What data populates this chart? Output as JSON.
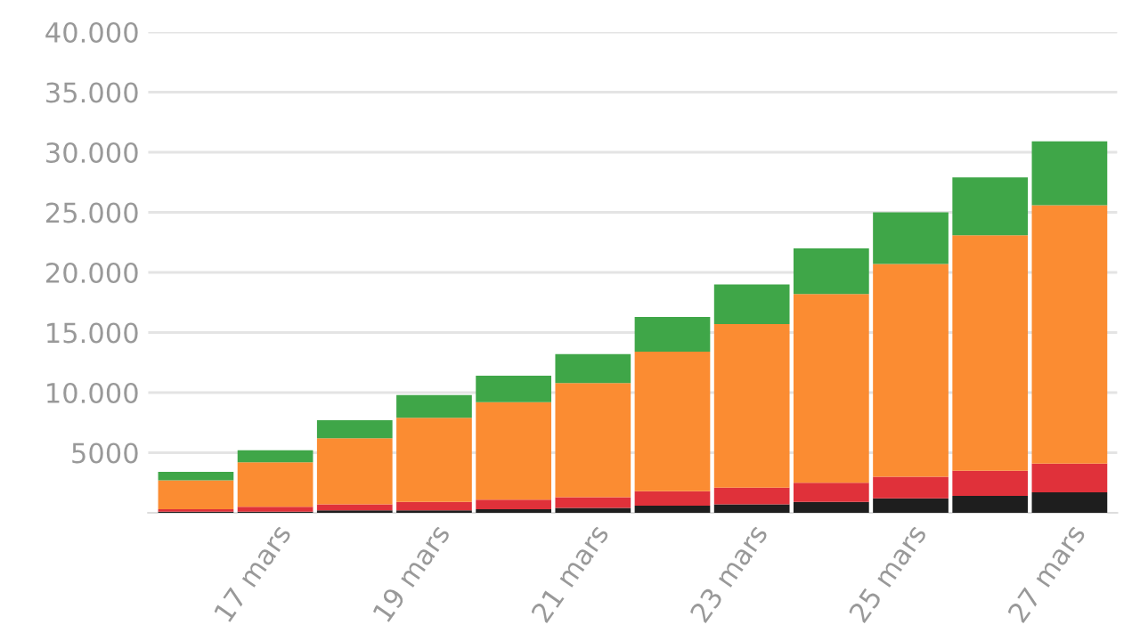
{
  "chart_data": {
    "type": "bar",
    "stacked": true,
    "categories": [
      null,
      "17 mars",
      null,
      "19 mars",
      null,
      "21 mars",
      null,
      "23 mars",
      null,
      "25 mars",
      null,
      "27 mars"
    ],
    "series": [
      {
        "color": "#1e1e1e",
        "values": [
          100,
          100,
          200,
          200,
          300,
          400,
          600,
          700,
          900,
          1200,
          1400,
          1700
        ]
      },
      {
        "color": "#e0313a",
        "values": [
          200,
          400,
          500,
          700,
          800,
          900,
          1200,
          1400,
          1600,
          1800,
          2100,
          2400
        ]
      },
      {
        "color": "#fb8c32",
        "values": [
          2400,
          3700,
          5500,
          7000,
          8100,
          9500,
          11600,
          13600,
          15700,
          17700,
          19600,
          21500
        ]
      },
      {
        "color": "#3fa648",
        "values": [
          700,
          1000,
          1500,
          1900,
          2200,
          2400,
          2900,
          3300,
          3800,
          4300,
          4800,
          5300
        ]
      }
    ],
    "ylim": [
      0,
      40000
    ],
    "yticks": [
      {
        "value": 5000,
        "label": "5000"
      },
      {
        "value": 10000,
        "label": "10.000"
      },
      {
        "value": 15000,
        "label": "15.000"
      },
      {
        "value": 20000,
        "label": "20.000"
      },
      {
        "value": 25000,
        "label": "25.000"
      },
      {
        "value": 30000,
        "label": "30.000"
      },
      {
        "value": 35000,
        "label": "35.000"
      },
      {
        "value": 40000,
        "label": "40.000"
      }
    ],
    "grid": "y"
  }
}
